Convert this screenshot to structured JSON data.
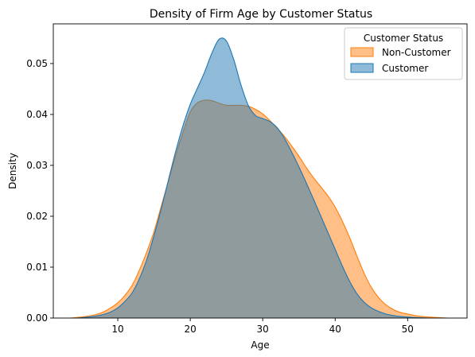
{
  "chart_data": {
    "type": "area",
    "title": "Density of Firm Age by Customer Status",
    "xlabel": "Age",
    "ylabel": "Density",
    "xlim": [
      1.1,
      58.2
    ],
    "ylim": [
      0,
      0.0578
    ],
    "x_ticks": [
      10,
      20,
      30,
      40,
      50
    ],
    "y_ticks": [
      0.0,
      0.01,
      0.02,
      0.03,
      0.04,
      0.05
    ],
    "y_tick_labels": [
      "0.00",
      "0.01",
      "0.02",
      "0.03",
      "0.04",
      "0.05"
    ],
    "grid": false,
    "legend": {
      "title": "Customer Status",
      "placement": "top-right"
    },
    "series": [
      {
        "name": "Non-Customer",
        "color": "#ff7f0e",
        "x": [
          3.5,
          5,
          6,
          7,
          8,
          9,
          10,
          11,
          12,
          13,
          14,
          15,
          16,
          17,
          18,
          19,
          20,
          21,
          22,
          23,
          24,
          25,
          26,
          27,
          28,
          29,
          30,
          31,
          32,
          33,
          34,
          35,
          36,
          37,
          38,
          39,
          40,
          41,
          42,
          43,
          44,
          45,
          46,
          47,
          48,
          49,
          50,
          51,
          52,
          53,
          54,
          55.5
        ],
        "y": [
          0,
          0.0002,
          0.0004,
          0.0007,
          0.0012,
          0.002,
          0.003,
          0.0045,
          0.0065,
          0.0095,
          0.013,
          0.017,
          0.022,
          0.027,
          0.032,
          0.0365,
          0.0405,
          0.0423,
          0.0428,
          0.0427,
          0.0422,
          0.0418,
          0.0418,
          0.0418,
          0.0416,
          0.041,
          0.0401,
          0.0388,
          0.0373,
          0.0357,
          0.0338,
          0.0318,
          0.0296,
          0.0276,
          0.0258,
          0.024,
          0.0218,
          0.019,
          0.0158,
          0.0122,
          0.0088,
          0.006,
          0.004,
          0.0026,
          0.0017,
          0.0011,
          0.0008,
          0.0005,
          0.0003,
          0.0002,
          0.0001,
          0
        ]
      },
      {
        "name": "Customer",
        "color": "#1f77b4",
        "x": [
          4.5,
          6,
          7,
          8,
          9,
          10,
          11,
          12,
          13,
          14,
          15,
          16,
          17,
          18,
          19,
          20,
          21,
          22,
          23,
          24,
          25,
          26,
          27,
          28,
          29,
          30,
          31,
          32,
          33,
          34,
          35,
          36,
          37,
          38,
          39,
          40,
          41,
          42,
          43,
          44,
          45,
          46,
          47,
          48,
          49,
          50,
          51,
          52.8
        ],
        "y": [
          0,
          0.0002,
          0.0004,
          0.0007,
          0.0012,
          0.002,
          0.0033,
          0.005,
          0.0078,
          0.0115,
          0.0162,
          0.0215,
          0.0272,
          0.0328,
          0.0378,
          0.042,
          0.0452,
          0.0484,
          0.0521,
          0.0548,
          0.0544,
          0.0508,
          0.0458,
          0.0418,
          0.0398,
          0.0392,
          0.0386,
          0.0374,
          0.0353,
          0.0326,
          0.0297,
          0.0266,
          0.0234,
          0.0201,
          0.0168,
          0.0135,
          0.0102,
          0.0072,
          0.0048,
          0.0031,
          0.002,
          0.0013,
          0.0008,
          0.0005,
          0.0003,
          0.0002,
          0.0001,
          0
        ]
      }
    ]
  }
}
